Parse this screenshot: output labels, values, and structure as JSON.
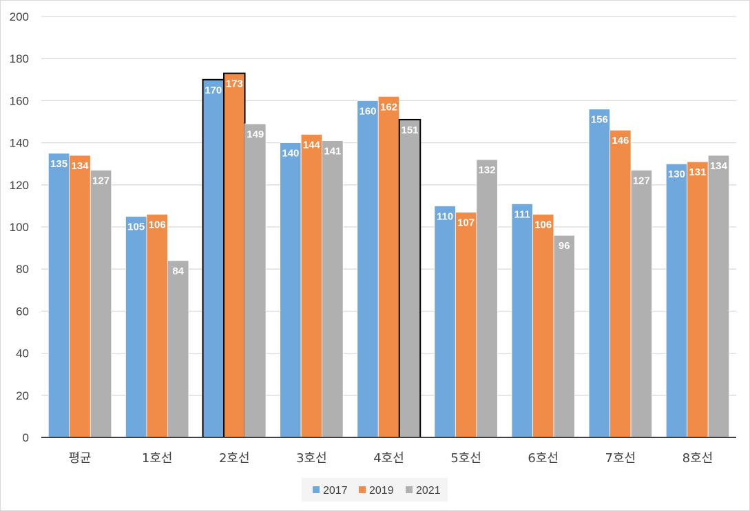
{
  "chart_data": {
    "type": "bar",
    "title": "",
    "xlabel": "",
    "ylabel": "",
    "categories": [
      "평균",
      "1호선",
      "2호선",
      "3호선",
      "4호선",
      "5호선",
      "6호선",
      "7호선",
      "8호선"
    ],
    "ylim": [
      0,
      200
    ],
    "yticks": [
      0,
      20,
      40,
      60,
      80,
      100,
      120,
      140,
      160,
      180,
      200
    ],
    "grid": true,
    "legend_position": "bottom",
    "series": [
      {
        "name": "2017",
        "color": "#6fa8dc",
        "values": [
          135,
          105,
          170,
          140,
          160,
          110,
          111,
          156,
          130
        ]
      },
      {
        "name": "2019",
        "color": "#f08c48",
        "values": [
          134,
          106,
          173,
          144,
          162,
          107,
          106,
          146,
          131
        ]
      },
      {
        "name": "2021",
        "color": "#b0b0b0",
        "values": [
          127,
          84,
          149,
          141,
          151,
          132,
          96,
          127,
          134
        ]
      }
    ],
    "highlighted": [
      "2호선-2017",
      "2호선-2019",
      "4호선-2021"
    ]
  }
}
